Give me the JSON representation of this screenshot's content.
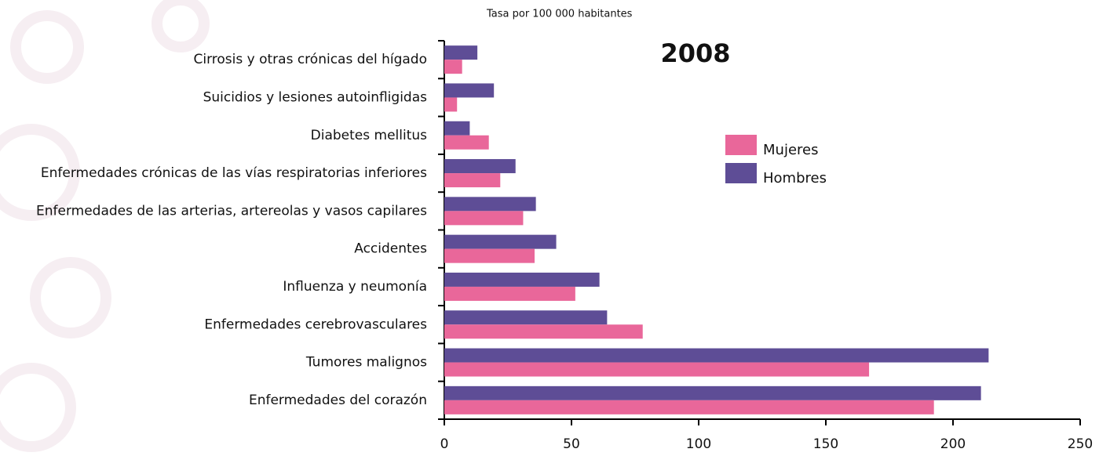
{
  "chart_data": {
    "type": "barh",
    "title": "2008",
    "xlabel": "Tasa por 100 000 habitantes",
    "categories": [
      "Cirrosis y otras crónicas del hígado",
      "Suicidios y lesiones autoinfligidas",
      "Diabetes mellitus",
      "Enfermedades crónicas de las vías  respiratorias inferiores",
      "Enfermedades de las arterias, artereolas y vasos capilares",
      "Accidentes",
      "Influenza y neumonía",
      "Enfermedades cerebrovasculares",
      "Tumores malignos",
      "Enfermedades del corazón"
    ],
    "series": [
      {
        "name": "Mujeres",
        "color": "#e9679a",
        "values": [
          7,
          5,
          17.5,
          22,
          31,
          35.5,
          51.5,
          78,
          167,
          192.5
        ]
      },
      {
        "name": "Hombres",
        "color": "#5e4d96",
        "values": [
          13,
          19.5,
          10,
          28,
          36,
          44,
          61,
          64,
          214,
          211
        ]
      }
    ],
    "xlim": [
      0,
      250
    ],
    "xticks": [
      0,
      50,
      100,
      150,
      200,
      250
    ],
    "legend": "upper right"
  }
}
